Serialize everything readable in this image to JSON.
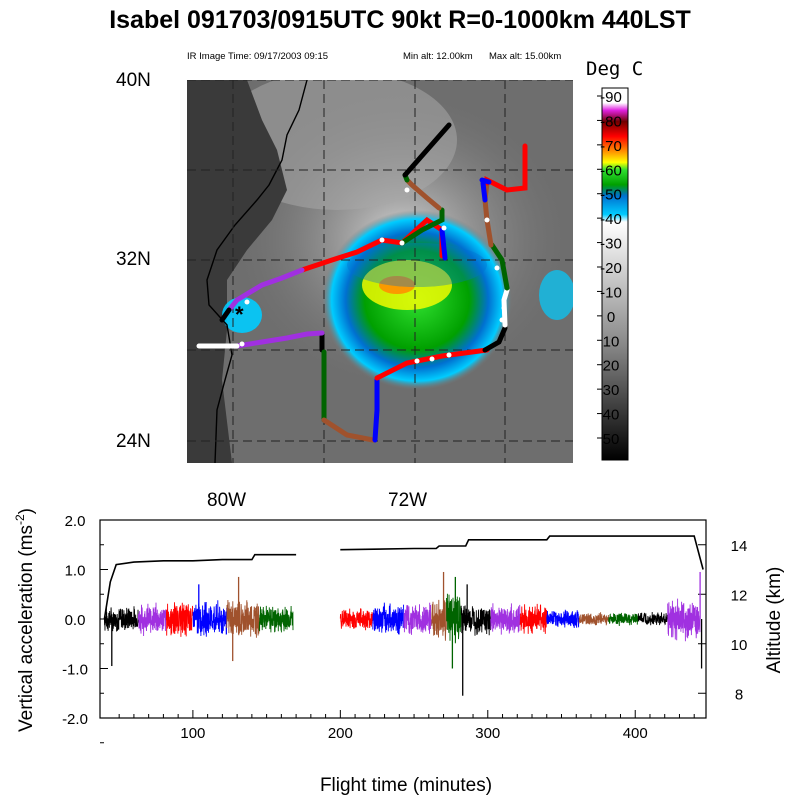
{
  "header": {
    "title": "Isabel 091703/0915UTC 90kt  R=0-1000km 440LST",
    "ir_time": "IR Image Time: 09/17/2003 09:15",
    "min_alt": "Min alt: 12.00km",
    "max_alt": "Max alt: 15.00km"
  },
  "map": {
    "lat_labels": [
      "40N",
      "32N",
      "24N"
    ],
    "lon_labels": [
      "80W",
      "72W"
    ],
    "storm_center_marker": "*"
  },
  "colorbar": {
    "unit": "Deg C",
    "tick_labels": [
      "-90",
      "-80",
      "-70",
      "-60",
      "-50",
      "-40",
      "-30",
      "-20",
      "-10",
      "0",
      "10",
      "20",
      "30",
      "40",
      "50"
    ],
    "colors_warm_to_cold": [
      "#000000",
      "#888888",
      "#ffffff",
      "#00ccff",
      "#0070d0",
      "#00a000",
      "#30e030",
      "#ffff00",
      "#ff9000",
      "#ff0000",
      "#700000",
      "#e020e0",
      "#ffffff"
    ]
  },
  "track_colors": [
    "#000000",
    "#a030e0",
    "#ff0000",
    "#0000ff",
    "#a0522d",
    "#006400"
  ],
  "chart_data": {
    "type": "line",
    "xlabel": "Flight time (minutes)",
    "ylabel": "Vertical acceleration (ms-2)",
    "ylabel_right": "Altitude (km)",
    "xlim": [
      37,
      448
    ],
    "ylim": [
      -2.0,
      2.0
    ],
    "ylim_right": [
      7,
      15
    ],
    "x_ticks": [
      100,
      200,
      300,
      400
    ],
    "x_tick_labels": [
      "100",
      "200",
      "300",
      "400"
    ],
    "y_ticks": [
      2.0,
      1.0,
      0.0,
      -1.0,
      -2.0
    ],
    "y_tick_labels": [
      "2.0",
      "1.0",
      "0.0",
      "-1.0",
      "-2.0"
    ],
    "y2_ticks": [
      8,
      10,
      12,
      14
    ],
    "y2_tick_labels": [
      "8",
      "10",
      "12",
      "14"
    ],
    "series": [
      {
        "name": "Altitude",
        "axis": "right",
        "x": [
          40,
          44,
          48,
          60,
          80,
          100,
          120,
          140,
          142,
          160,
          170,
          200,
          250,
          265,
          267,
          285,
          287,
          340,
          342,
          400,
          420,
          440,
          446
        ],
        "y": [
          11.0,
          12.5,
          13.2,
          13.3,
          13.35,
          13.35,
          13.4,
          13.4,
          13.6,
          13.6,
          13.6,
          13.8,
          13.85,
          13.85,
          13.95,
          13.95,
          14.2,
          14.2,
          14.35,
          14.35,
          14.35,
          14.35,
          13.0
        ]
      },
      {
        "name": "Vertical acceleration",
        "axis": "left",
        "segments": [
          {
            "x": [
              40,
              63
            ],
            "color": "#000000",
            "amp": 0.3
          },
          {
            "x": [
              63,
              82
            ],
            "color": "#a030e0",
            "amp": 0.35
          },
          {
            "x": [
              82,
              100
            ],
            "color": "#ff0000",
            "amp": 0.4
          },
          {
            "x": [
              100,
              123
            ],
            "color": "#0000ff",
            "amp": 0.4
          },
          {
            "x": [
              123,
              145
            ],
            "color": "#a0522d",
            "amp": 0.45
          },
          {
            "x": [
              145,
              168
            ],
            "color": "#006400",
            "amp": 0.3
          },
          {
            "x": [
              200,
              222
            ],
            "color": "#ff0000",
            "amp": 0.25
          },
          {
            "x": [
              222,
              243
            ],
            "color": "#0000ff",
            "amp": 0.35
          },
          {
            "x": [
              243,
              262
            ],
            "color": "#a030e0",
            "amp": 0.35
          },
          {
            "x": [
              262,
              272
            ],
            "color": "#a0522d",
            "amp": 0.5
          },
          {
            "x": [
              272,
              282
            ],
            "color": "#006400",
            "amp": 0.6
          },
          {
            "x": [
              282,
              302
            ],
            "color": "#000000",
            "amp": 0.35
          },
          {
            "x": [
              302,
              322
            ],
            "color": "#a030e0",
            "amp": 0.35
          },
          {
            "x": [
              322,
              340
            ],
            "color": "#ff0000",
            "amp": 0.35
          },
          {
            "x": [
              340,
              362
            ],
            "color": "#0000ff",
            "amp": 0.2
          },
          {
            "x": [
              362,
              382
            ],
            "color": "#a0522d",
            "amp": 0.15
          },
          {
            "x": [
              382,
              402
            ],
            "color": "#006400",
            "amp": 0.15
          },
          {
            "x": [
              402,
              422
            ],
            "color": "#000000",
            "amp": 0.15
          },
          {
            "x": [
              422,
              444
            ],
            "color": "#a030e0",
            "amp": 0.5
          }
        ],
        "spikes": [
          {
            "x": 45,
            "y": -0.95
          },
          {
            "x": 104,
            "y": 0.7
          },
          {
            "x": 127,
            "y": -0.85
          },
          {
            "x": 131,
            "y": 0.85
          },
          {
            "x": 270,
            "y": 0.95
          },
          {
            "x": 276,
            "y": -1.0
          },
          {
            "x": 278,
            "y": 0.85
          },
          {
            "x": 283,
            "y": -1.55
          },
          {
            "x": 286,
            "y": 0.7
          },
          {
            "x": 444,
            "y": 0.95
          },
          {
            "x": 445,
            "y": -1.0
          }
        ]
      }
    ]
  }
}
